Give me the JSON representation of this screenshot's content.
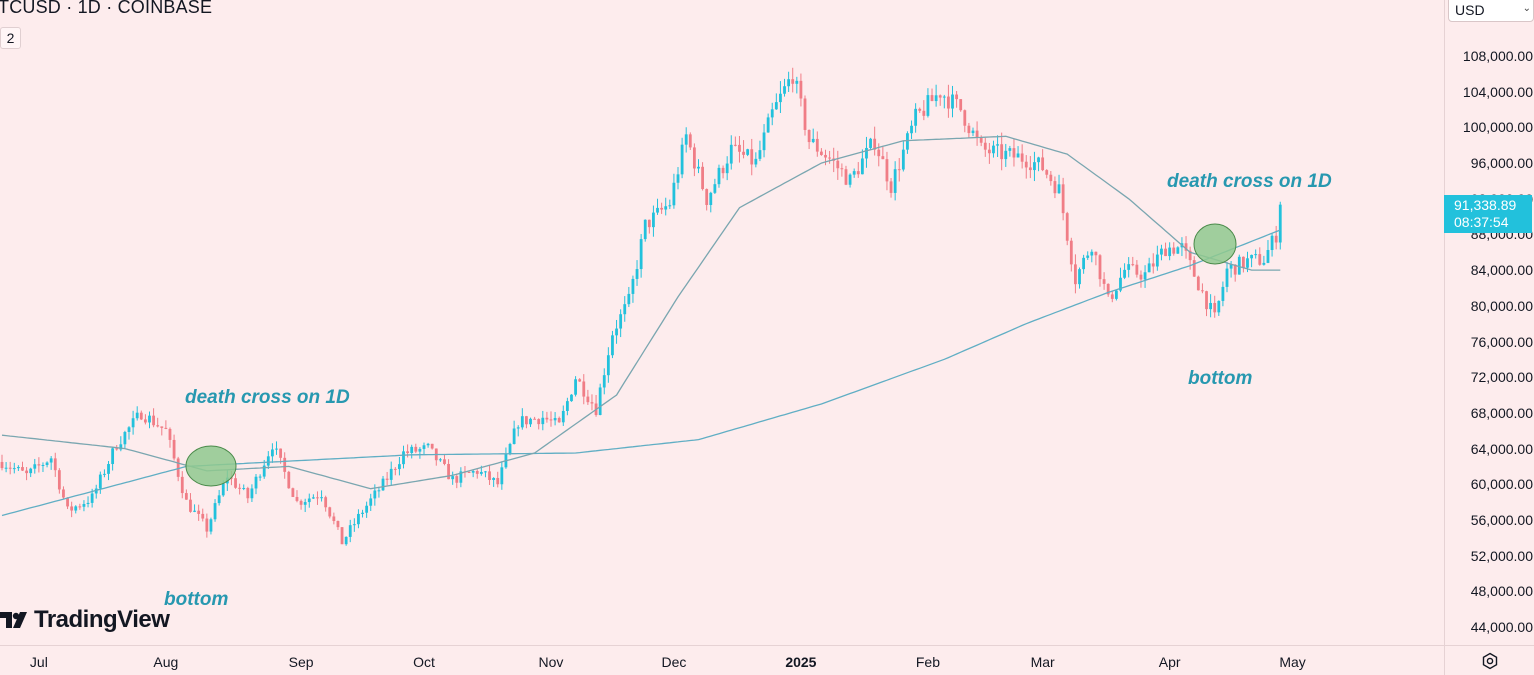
{
  "header": {
    "symbol_title": "TCUSD · 1D · COINBASE",
    "indicator_badge": "2",
    "currency": "USD"
  },
  "price_label": {
    "price": "91,338.89",
    "countdown": "08:37:54"
  },
  "branding": {
    "logo_text": "TradingView"
  },
  "annotations": [
    {
      "text": "death cross on 1D"
    },
    {
      "text": "bottom"
    },
    {
      "text": "death cross on 1D"
    },
    {
      "text": "bottom"
    }
  ],
  "colors": {
    "up": "#22c1dc",
    "down": "#f07d86",
    "ma_short": "#7aa6b0",
    "ma_long": "#60aec4",
    "highlight": "#8fc98e",
    "background": "#fdeced"
  },
  "chart_data": {
    "type": "candlestick",
    "title": "TCUSD · 1D · COINBASE",
    "ylim": [
      42000,
      111000
    ],
    "y_ticks": [
      "108,000.00",
      "104,000.00",
      "100,000.00",
      "96,000.00",
      "92,000.00",
      "88,000.00",
      "84,000.00",
      "80,000.00",
      "76,000.00",
      "72,000.00",
      "68,000.00",
      "64,000.00",
      "60,000.00",
      "56,000.00",
      "52,000.00",
      "48,000.00",
      "44,000.00"
    ],
    "x_ticks": [
      {
        "label": "Jul",
        "bold": false
      },
      {
        "label": "Aug",
        "bold": false
      },
      {
        "label": "Sep",
        "bold": false
      },
      {
        "label": "Oct",
        "bold": false
      },
      {
        "label": "Nov",
        "bold": false
      },
      {
        "label": "Dec",
        "bold": false
      },
      {
        "label": "2025",
        "bold": true
      },
      {
        "label": "Feb",
        "bold": false
      },
      {
        "label": "Mar",
        "bold": false
      },
      {
        "label": "Apr",
        "bold": false
      },
      {
        "label": "May",
        "bold": false
      }
    ],
    "price_anchors": [
      {
        "t": 0,
        "p": 62500
      },
      {
        "t": 6,
        "p": 61000
      },
      {
        "t": 12,
        "p": 63000
      },
      {
        "t": 16,
        "p": 57000
      },
      {
        "t": 22,
        "p": 58500
      },
      {
        "t": 28,
        "p": 64500
      },
      {
        "t": 34,
        "p": 68000
      },
      {
        "t": 40,
        "p": 66000
      },
      {
        "t": 45,
        "p": 58000
      },
      {
        "t": 50,
        "p": 55000
      },
      {
        "t": 55,
        "p": 61000
      },
      {
        "t": 60,
        "p": 58500
      },
      {
        "t": 66,
        "p": 64500
      },
      {
        "t": 72,
        "p": 58000
      },
      {
        "t": 78,
        "p": 59000
      },
      {
        "t": 83,
        "p": 53500
      },
      {
        "t": 88,
        "p": 57000
      },
      {
        "t": 93,
        "p": 60000
      },
      {
        "t": 98,
        "p": 63500
      },
      {
        "t": 104,
        "p": 64000
      },
      {
        "t": 110,
        "p": 60500
      },
      {
        "t": 116,
        "p": 61500
      },
      {
        "t": 121,
        "p": 60000
      },
      {
        "t": 126,
        "p": 67000
      },
      {
        "t": 132,
        "p": 67500
      },
      {
        "t": 136,
        "p": 66500
      },
      {
        "t": 140,
        "p": 72000
      },
      {
        "t": 145,
        "p": 68500
      },
      {
        "t": 149,
        "p": 77000
      },
      {
        "t": 153,
        "p": 80500
      },
      {
        "t": 157,
        "p": 89000
      },
      {
        "t": 163,
        "p": 91500
      },
      {
        "t": 167,
        "p": 99000
      },
      {
        "t": 172,
        "p": 92000
      },
      {
        "t": 178,
        "p": 97500
      },
      {
        "t": 184,
        "p": 96000
      },
      {
        "t": 188,
        "p": 101500
      },
      {
        "t": 193,
        "p": 106000
      },
      {
        "t": 197,
        "p": 98500
      },
      {
        "t": 202,
        "p": 96500
      },
      {
        "t": 207,
        "p": 94000
      },
      {
        "t": 213,
        "p": 98500
      },
      {
        "t": 217,
        "p": 93500
      },
      {
        "t": 223,
        "p": 101000
      },
      {
        "t": 229,
        "p": 104000
      },
      {
        "t": 234,
        "p": 102000
      },
      {
        "t": 239,
        "p": 97500
      },
      {
        "t": 244,
        "p": 97000
      },
      {
        "t": 250,
        "p": 96500
      },
      {
        "t": 254,
        "p": 95500
      },
      {
        "t": 258,
        "p": 93000
      },
      {
        "t": 262,
        "p": 83000
      },
      {
        "t": 266,
        "p": 87000
      },
      {
        "t": 270,
        "p": 80500
      },
      {
        "t": 274,
        "p": 84000
      },
      {
        "t": 279,
        "p": 83500
      },
      {
        "t": 284,
        "p": 86500
      },
      {
        "t": 288,
        "p": 86500
      },
      {
        "t": 292,
        "p": 82500
      },
      {
        "t": 296,
        "p": 78500
      },
      {
        "t": 299,
        "p": 84000
      },
      {
        "t": 304,
        "p": 85000
      },
      {
        "t": 308,
        "p": 85200
      },
      {
        "t": 311,
        "p": 88000
      },
      {
        "t": 312,
        "p": 91338.89
      }
    ],
    "ma_long_anchors": [
      {
        "t": 0,
        "p": 56500
      },
      {
        "t": 45,
        "p": 62000
      },
      {
        "t": 100,
        "p": 63300
      },
      {
        "t": 140,
        "p": 63500
      },
      {
        "t": 170,
        "p": 65000
      },
      {
        "t": 200,
        "p": 69000
      },
      {
        "t": 230,
        "p": 74000
      },
      {
        "t": 250,
        "p": 78000
      },
      {
        "t": 270,
        "p": 81500
      },
      {
        "t": 290,
        "p": 84500
      },
      {
        "t": 312,
        "p": 88500
      }
    ],
    "ma_short_anchors": [
      {
        "t": 0,
        "p": 65500
      },
      {
        "t": 30,
        "p": 64000
      },
      {
        "t": 50,
        "p": 61500
      },
      {
        "t": 70,
        "p": 62000
      },
      {
        "t": 90,
        "p": 59500
      },
      {
        "t": 110,
        "p": 61000
      },
      {
        "t": 130,
        "p": 63500
      },
      {
        "t": 150,
        "p": 70000
      },
      {
        "t": 165,
        "p": 81000
      },
      {
        "t": 180,
        "p": 91000
      },
      {
        "t": 200,
        "p": 96000
      },
      {
        "t": 220,
        "p": 98500
      },
      {
        "t": 245,
        "p": 99000
      },
      {
        "t": 260,
        "p": 97000
      },
      {
        "t": 275,
        "p": 92000
      },
      {
        "t": 290,
        "p": 86000
      },
      {
        "t": 305,
        "p": 84000
      },
      {
        "t": 312,
        "p": 84000
      }
    ]
  }
}
